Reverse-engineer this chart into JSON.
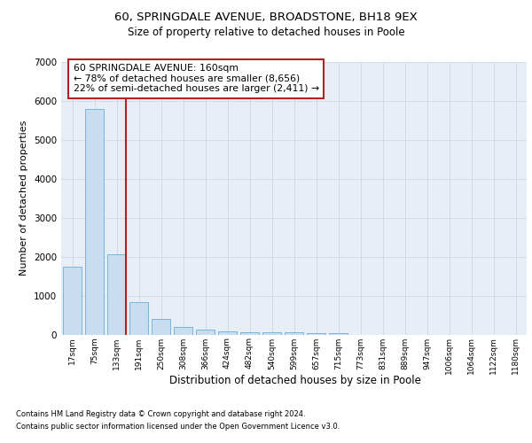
{
  "title_line1": "60, SPRINGDALE AVENUE, BROADSTONE, BH18 9EX",
  "title_line2": "Size of property relative to detached houses in Poole",
  "xlabel": "Distribution of detached houses by size in Poole",
  "ylabel": "Number of detached properties",
  "bar_labels": [
    "17sqm",
    "75sqm",
    "133sqm",
    "191sqm",
    "250sqm",
    "308sqm",
    "366sqm",
    "424sqm",
    "482sqm",
    "540sqm",
    "599sqm",
    "657sqm",
    "715sqm",
    "773sqm",
    "831sqm",
    "889sqm",
    "947sqm",
    "1006sqm",
    "1064sqm",
    "1122sqm",
    "1180sqm"
  ],
  "bar_values": [
    1750,
    5800,
    2050,
    820,
    400,
    200,
    130,
    80,
    60,
    50,
    50,
    30,
    30,
    0,
    0,
    0,
    0,
    0,
    0,
    0,
    0
  ],
  "bar_color": "#c9ddf0",
  "bar_edge_color": "#6aaed6",
  "grid_color": "#c8d4e0",
  "bg_color": "#e8eef6",
  "vline_color": "#b22222",
  "annotation_text": "60 SPRINGDALE AVENUE: 160sqm\n← 78% of detached houses are smaller (8,656)\n22% of semi-detached houses are larger (2,411) →",
  "annotation_box_edgecolor": "#b22222",
  "ylim": [
    0,
    7000
  ],
  "yticks": [
    0,
    1000,
    2000,
    3000,
    4000,
    5000,
    6000,
    7000
  ],
  "footnote_line1": "Contains HM Land Registry data © Crown copyright and database right 2024.",
  "footnote_line2": "Contains public sector information licensed under the Open Government Licence v3.0."
}
